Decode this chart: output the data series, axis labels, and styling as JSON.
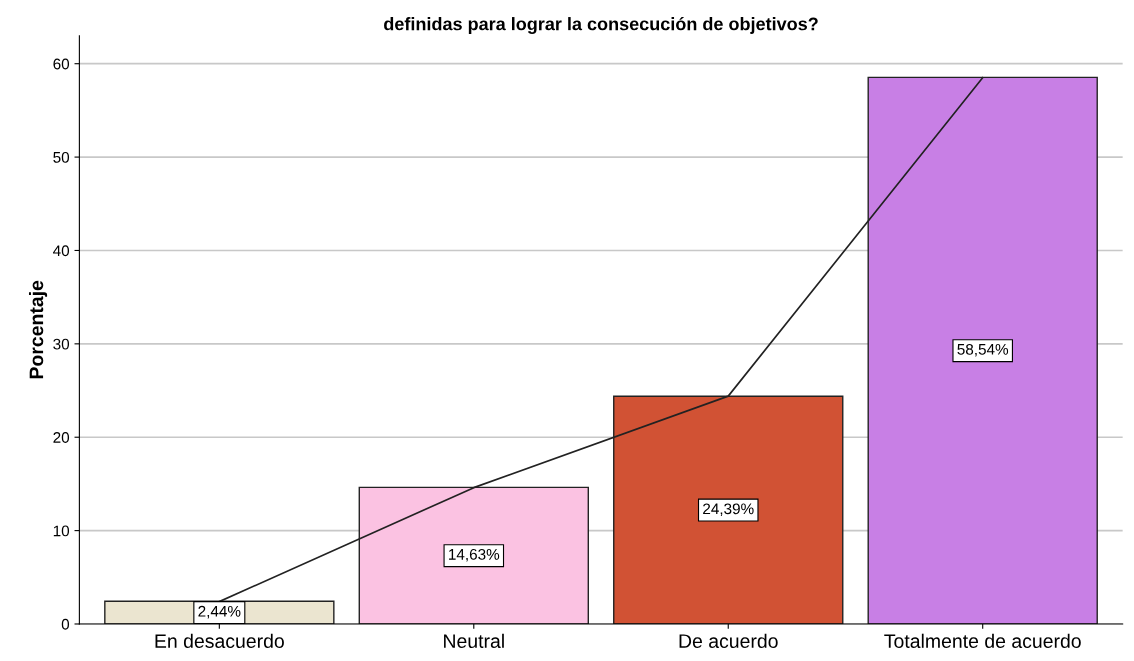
{
  "chart_data": {
    "type": "bar",
    "title": "definidas para lograr la consecución de objetivos?",
    "ylabel": "Porcentaje",
    "categories": [
      "En desacuerdo",
      "Neutral",
      "De acuerdo",
      "Totalmente de acuerdo"
    ],
    "series": [
      {
        "colors": [
          "#ebe5d0",
          "#fbc2e2",
          "#d15234",
          "#c87fe5"
        ],
        "values": [
          2.44,
          14.63,
          24.39,
          58.54
        ],
        "value_labels": [
          "2,44%",
          "14,63%",
          "24,39%",
          "58,54%"
        ]
      },
      {
        "type": "line",
        "color": "#222222",
        "values": [
          2.4,
          14.6,
          24.4,
          58.5
        ]
      }
    ],
    "ylim": [
      0,
      63
    ],
    "yticks": [
      0,
      10,
      20,
      30,
      40,
      50,
      60
    ],
    "grid": "y",
    "marker": "none",
    "line_style": "solid"
  }
}
